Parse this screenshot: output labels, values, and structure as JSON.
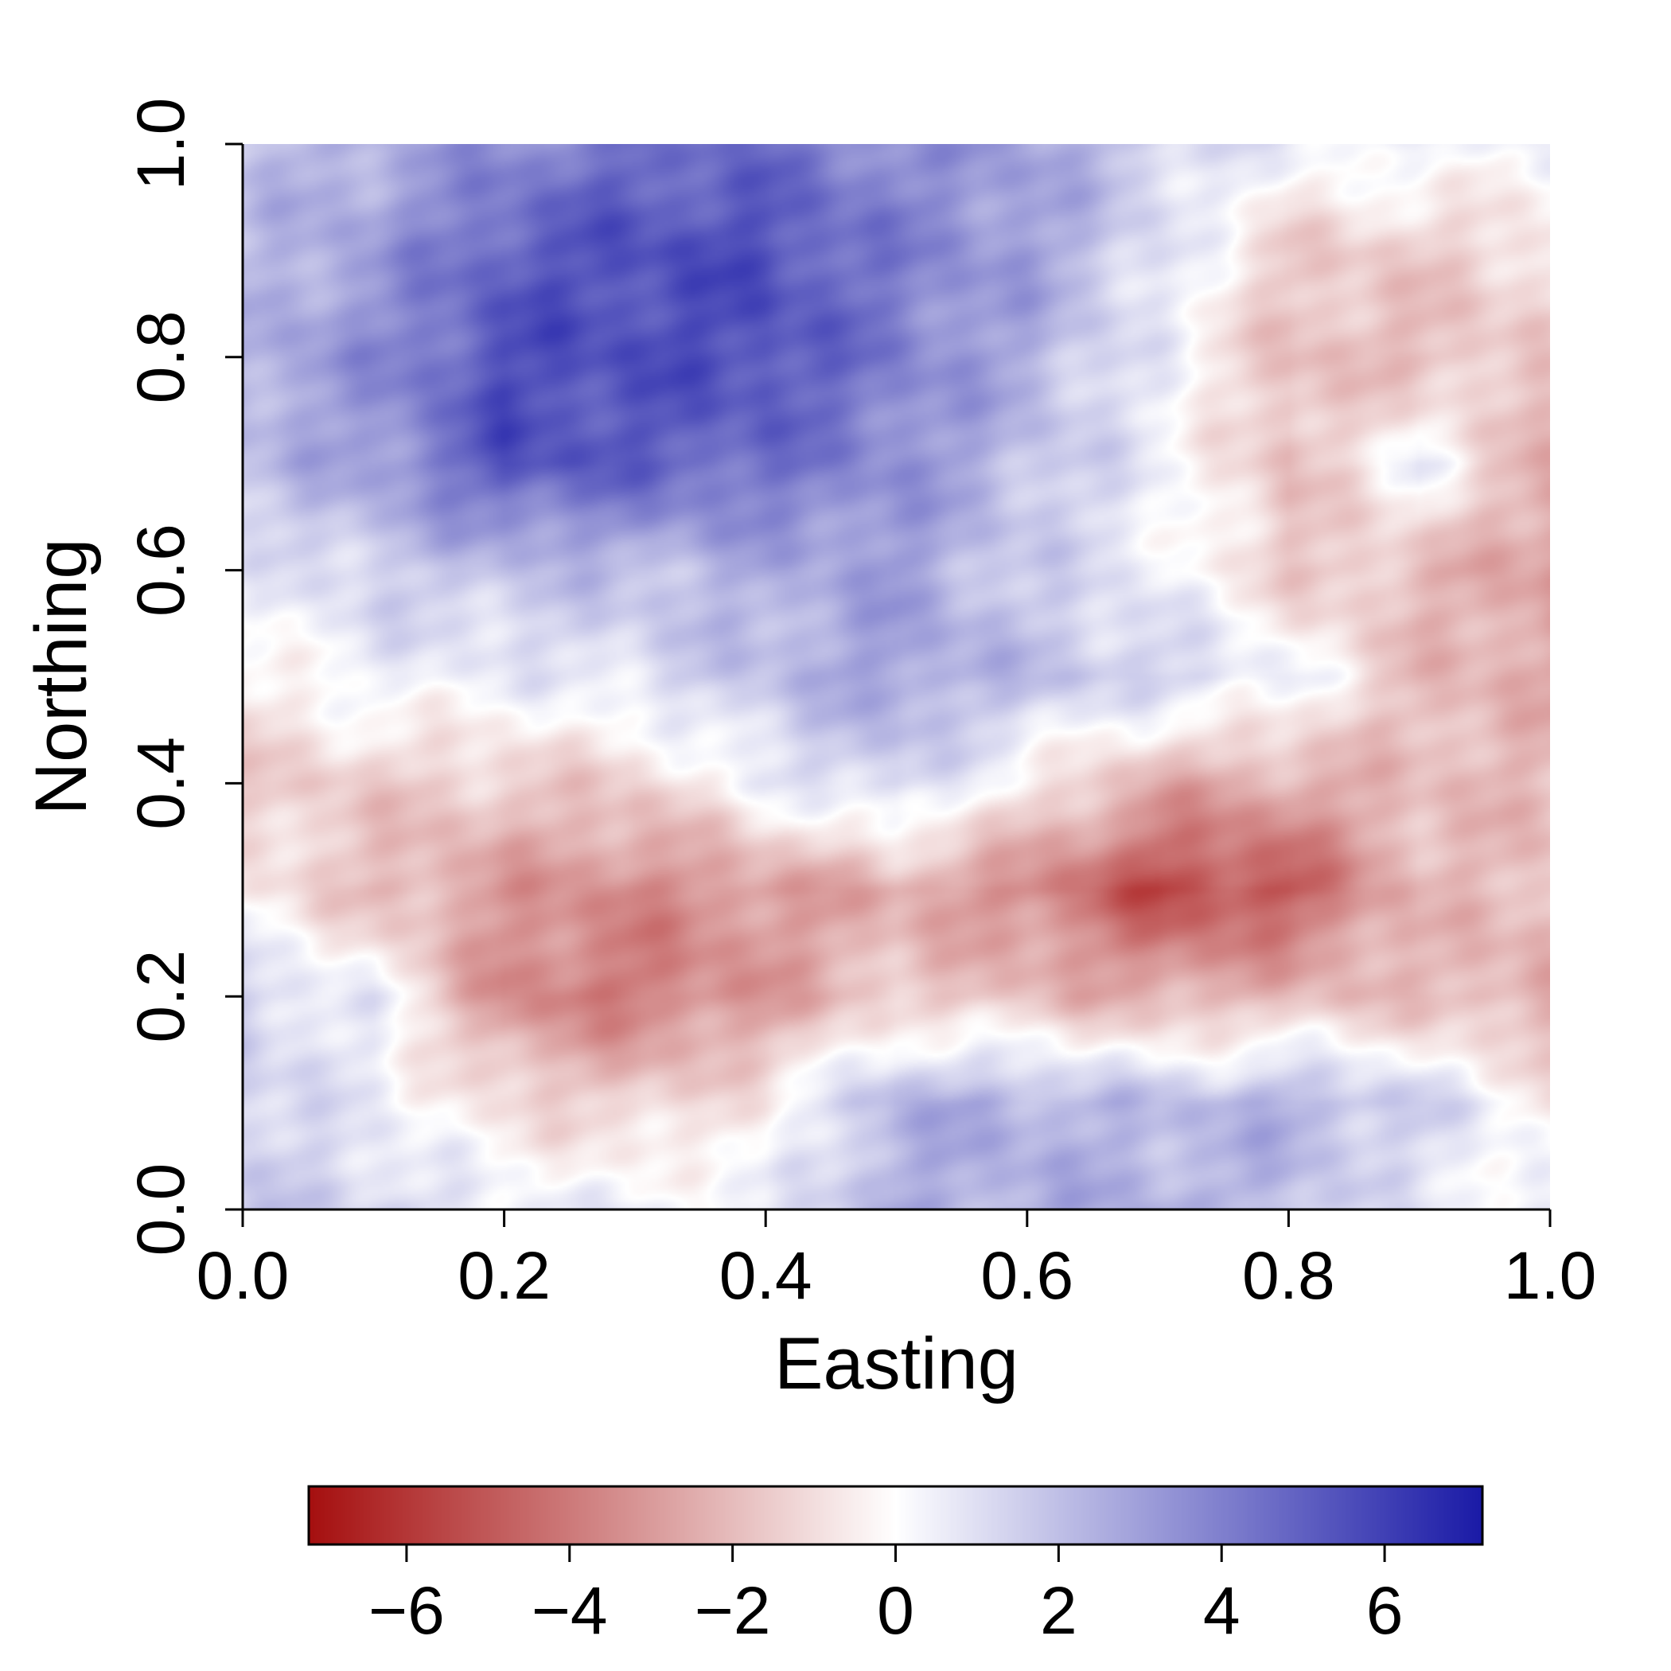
{
  "chart_data": {
    "type": "heatmap",
    "xlabel": "Easting",
    "ylabel": "Northing",
    "xlim": [
      0.0,
      1.0
    ],
    "ylim": [
      0.0,
      1.0
    ],
    "x_ticks": [
      "0.0",
      "0.2",
      "0.4",
      "0.6",
      "0.8",
      "1.0"
    ],
    "y_ticks": [
      "0.0",
      "0.2",
      "0.4",
      "0.6",
      "0.8",
      "1.0"
    ],
    "x_tick_values": [
      0.0,
      0.2,
      0.4,
      0.6,
      0.8,
      1.0
    ],
    "y_tick_values": [
      0.0,
      0.2,
      0.4,
      0.6,
      0.8,
      1.0
    ],
    "colorbar": {
      "range": [
        -7.2,
        7.2
      ],
      "ticks": [
        "−6",
        "−4",
        "−2",
        "0",
        "2",
        "4",
        "6"
      ],
      "tick_values": [
        -6,
        -4,
        -2,
        0,
        2,
        4,
        6
      ],
      "placement": "bottom",
      "low_color": "#a50f0f",
      "mid_color": "#ffffff",
      "high_color": "#1a1aa6"
    },
    "grid_x": [
      0.0,
      0.1,
      0.2,
      0.3,
      0.4,
      0.5,
      0.6,
      0.7,
      0.8,
      0.9,
      1.0
    ],
    "grid_y": [
      1.0,
      0.9,
      0.8,
      0.7,
      0.6,
      0.5,
      0.4,
      0.3,
      0.2,
      0.1,
      0.0
    ],
    "values": [
      [
        2.0,
        2.5,
        3.5,
        4.5,
        4.5,
        3.5,
        3.0,
        1.5,
        0.5,
        0.5,
        0.2
      ],
      [
        2.0,
        3.0,
        5.0,
        5.5,
        5.5,
        4.0,
        3.0,
        1.0,
        -1.5,
        -1.5,
        -1.0
      ],
      [
        2.5,
        3.5,
        5.5,
        5.5,
        5.5,
        4.0,
        2.5,
        0.5,
        -2.0,
        -2.0,
        -1.5
      ],
      [
        2.0,
        3.0,
        5.5,
        5.0,
        4.5,
        3.5,
        2.0,
        0.5,
        -2.0,
        0.5,
        -2.5
      ],
      [
        0.5,
        1.5,
        2.0,
        2.0,
        2.5,
        3.0,
        1.5,
        0.5,
        -1.5,
        -2.0,
        -3.0
      ],
      [
        -0.5,
        0.5,
        0.5,
        1.0,
        2.0,
        3.0,
        2.0,
        1.5,
        0.5,
        -2.0,
        -2.5
      ],
      [
        -1.5,
        -1.5,
        -1.5,
        -1.5,
        0.5,
        1.5,
        -0.5,
        -2.5,
        -2.5,
        -2.0,
        -2.0
      ],
      [
        -0.5,
        -2.0,
        -3.0,
        -3.5,
        -3.0,
        -2.5,
        -3.5,
        -5.5,
        -5.0,
        -2.0,
        -2.0
      ],
      [
        1.5,
        0.5,
        -3.5,
        -4.0,
        -3.0,
        -1.5,
        -2.0,
        -2.5,
        -2.0,
        -2.0,
        -2.5
      ],
      [
        1.5,
        0.5,
        -1.0,
        -1.5,
        -0.5,
        2.5,
        2.5,
        2.0,
        2.5,
        1.5,
        -0.5
      ],
      [
        1.5,
        1.5,
        0.5,
        0.5,
        0.5,
        2.5,
        2.5,
        2.5,
        2.0,
        0.5,
        0.5
      ]
    ]
  }
}
